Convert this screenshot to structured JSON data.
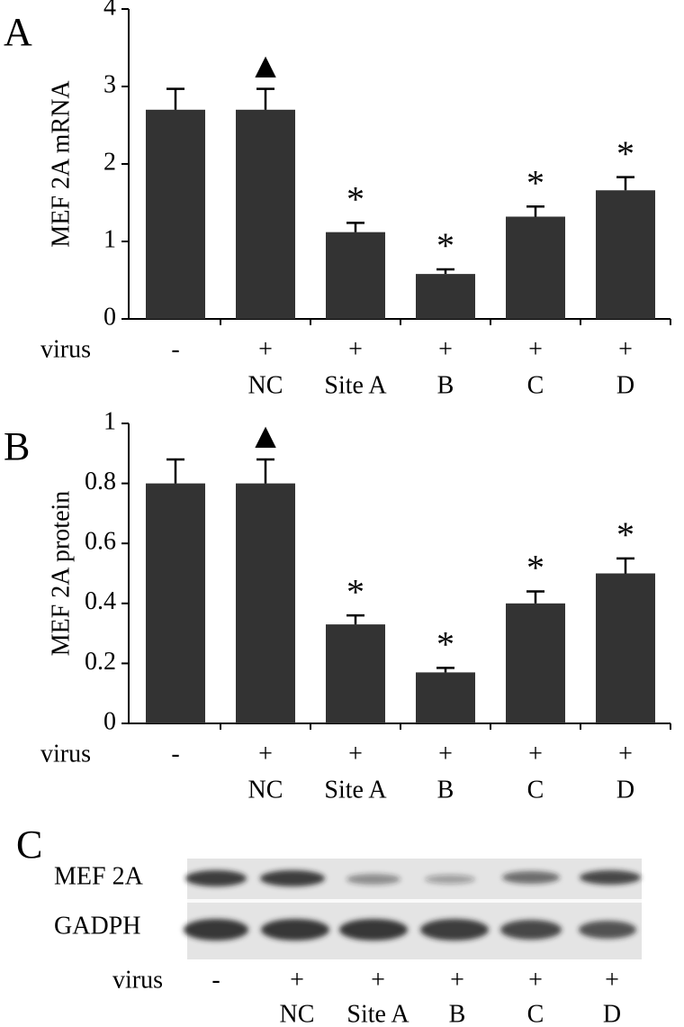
{
  "chart_data": [
    {
      "type": "bar",
      "panel_label": "A",
      "ylabel": "MEF 2A mRNA",
      "row_label": "virus",
      "categories": [
        "-",
        "+",
        "+",
        "+",
        "+",
        "+"
      ],
      "category_sublabels": [
        null,
        "NC",
        "Site A",
        "B",
        "C",
        "D"
      ],
      "values": [
        2.7,
        2.7,
        1.12,
        0.58,
        1.32,
        1.66
      ],
      "errors": [
        0.27,
        0.27,
        0.12,
        0.06,
        0.13,
        0.17
      ],
      "markers": [
        null,
        "▲",
        "*",
        "*",
        "*",
        "*"
      ],
      "color": "#333333",
      "ylim": [
        0,
        4
      ],
      "yticks": [
        0,
        1,
        2,
        3,
        4
      ]
    },
    {
      "type": "bar",
      "panel_label": "B",
      "ylabel": "MEF 2A protein",
      "row_label": "virus",
      "categories": [
        "-",
        "+",
        "+",
        "+",
        "+",
        "+"
      ],
      "category_sublabels": [
        null,
        "NC",
        "Site A",
        "B",
        "C",
        "D"
      ],
      "values": [
        0.8,
        0.8,
        0.33,
        0.17,
        0.4,
        0.5
      ],
      "errors": [
        0.08,
        0.08,
        0.03,
        0.015,
        0.04,
        0.05
      ],
      "markers": [
        null,
        "▲",
        "*",
        "*",
        "*",
        "*"
      ],
      "color": "#333333",
      "ylim": [
        0,
        1
      ],
      "yticks": [
        0,
        0.2,
        0.4,
        0.6,
        0.8,
        1
      ]
    }
  ],
  "blot": {
    "panel_label": "C",
    "rows": [
      "MEF 2A",
      "GADPH"
    ],
    "row_label": "virus",
    "categories": [
      "-",
      "+",
      "+",
      "+",
      "+",
      "+"
    ],
    "category_sublabels": [
      null,
      "NC",
      "Site A",
      "B",
      "C",
      "D"
    ]
  }
}
